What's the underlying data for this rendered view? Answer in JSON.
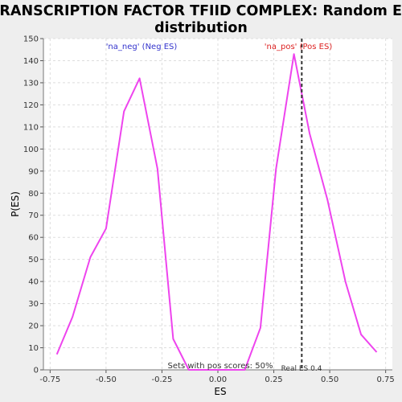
{
  "chart_data": {
    "type": "line",
    "title_line1": "TRANSCRIPTION FACTOR TFIID COMPLEX: Random ES",
    "title_line2": "distribution",
    "xlabel": "ES",
    "ylabel": "P(ES)",
    "xlim": [
      -0.78,
      0.78
    ],
    "ylim": [
      0,
      150
    ],
    "grid": true,
    "x_ticks": [
      -0.75,
      -0.5,
      -0.25,
      0.0,
      0.25,
      0.5,
      0.75
    ],
    "x_tick_labels": [
      "-0.75",
      "-0.50",
      "-0.25",
      "0.00",
      "0.25",
      "0.50",
      "0.75"
    ],
    "y_ticks": [
      0,
      10,
      20,
      30,
      40,
      50,
      60,
      70,
      80,
      90,
      100,
      110,
      120,
      130,
      140,
      150
    ],
    "y_tick_labels": [
      "0",
      "10",
      "20",
      "30",
      "40",
      "50",
      "60",
      "70",
      "80",
      "90",
      "100",
      "110",
      "120",
      "130",
      "140",
      "150"
    ],
    "series": [
      {
        "color": "#ee44ee",
        "points": [
          [
            -0.72,
            7
          ],
          [
            -0.65,
            24
          ],
          [
            -0.57,
            51
          ],
          [
            -0.5,
            64
          ],
          [
            -0.42,
            117
          ],
          [
            -0.35,
            132
          ],
          [
            -0.27,
            91
          ],
          [
            -0.2,
            14
          ],
          [
            -0.13,
            0
          ],
          [
            0.12,
            0
          ],
          [
            0.19,
            19
          ],
          [
            0.26,
            91
          ],
          [
            0.34,
            143
          ],
          [
            0.41,
            107
          ],
          [
            0.49,
            77
          ],
          [
            0.57,
            40
          ],
          [
            0.64,
            16
          ],
          [
            0.71,
            8
          ]
        ]
      }
    ],
    "real_es": {
      "value": 0.375,
      "label": "Real ES 0.4",
      "color": "#333333"
    },
    "annotations": {
      "neg_label": "'na_neg' (Neg ES)",
      "neg_color": "#3333cc",
      "pos_label": "'na_pos' (Pos ES)",
      "pos_color": "#dd2222",
      "sets_text": "Sets with pos scores: 50%"
    }
  }
}
